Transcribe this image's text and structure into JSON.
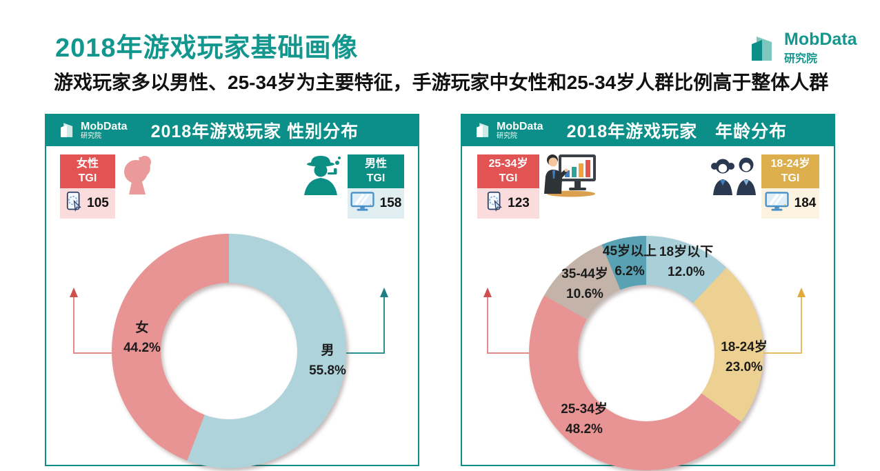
{
  "page": {
    "title": "2018年游戏玩家基础画像",
    "subtitle": "游戏玩家多以男性、25-34岁为主要特征，手游玩家中女性和25-34岁人群比例高于整体人群"
  },
  "brand": {
    "name": "MobData",
    "dept": "研究院"
  },
  "colors": {
    "teal_accent": "#0b8f88",
    "title_teal": "#12968d",
    "slice_salmon": "#e99494",
    "slice_light_blue": "#aed3db",
    "slice_gold": "#ecd192",
    "slice_tan": "#c3b3a9",
    "slice_dark_teal": "#58a2b3",
    "badge_red": "#e25453",
    "badge_red_bg": "#fadcdc",
    "badge_teal": "#0b8f85",
    "badge_teal_bg": "#e1eef1",
    "badge_gold": "#dcae4c",
    "badge_gold_bg": "#fbf3df"
  },
  "panels": [
    {
      "title": "2018年游戏玩家 性别分布",
      "left_badge": {
        "line1": "女性",
        "line2": "TGI",
        "value": "105",
        "icon": "phone-tap-icon"
      },
      "right_badge": {
        "line1": "男性",
        "line2": "TGI",
        "value": "158",
        "icon": "monitor-icon"
      }
    },
    {
      "title": "2018年游戏玩家　年龄分布",
      "left_badge": {
        "line1": "25-34岁",
        "line2": "TGI",
        "value": "123",
        "icon": "phone-tap-icon"
      },
      "right_badge": {
        "line1": "18-24岁",
        "line2": "TGI",
        "value": "184",
        "icon": "monitor-icon"
      }
    }
  ],
  "chart_data": [
    {
      "type": "pie",
      "donut": true,
      "title": "2018年游戏玩家 性别分布",
      "start_angle_deg": 0,
      "direction": "clockwise",
      "unit": "%",
      "categories": [
        "男",
        "女"
      ],
      "values": [
        55.8,
        44.2
      ],
      "colors": [
        "#aed3db",
        "#e99494"
      ],
      "point_labels": [
        {
          "name": "男",
          "pct": "55.8%"
        },
        {
          "name": "女",
          "pct": "44.2%"
        }
      ]
    },
    {
      "type": "pie",
      "donut": true,
      "title": "2018年游戏玩家 年龄分布",
      "start_angle_deg": 0,
      "direction": "clockwise",
      "unit": "%",
      "categories": [
        "18岁以下",
        "18-24岁",
        "25-34岁",
        "35-44岁",
        "45岁以上"
      ],
      "values": [
        12.0,
        23.0,
        48.2,
        10.6,
        6.2
      ],
      "colors": [
        "#a9cfd9",
        "#ecd192",
        "#e99494",
        "#c3b3a9",
        "#58a2b3"
      ],
      "point_labels": [
        {
          "name": "18岁以下",
          "pct": "12.0%"
        },
        {
          "name": "18-24岁",
          "pct": "23.0%"
        },
        {
          "name": "25-34岁",
          "pct": "48.2%"
        },
        {
          "name": "35-44岁",
          "pct": "10.6%"
        },
        {
          "name": "45岁以上",
          "pct": "6.2%"
        }
      ]
    }
  ]
}
